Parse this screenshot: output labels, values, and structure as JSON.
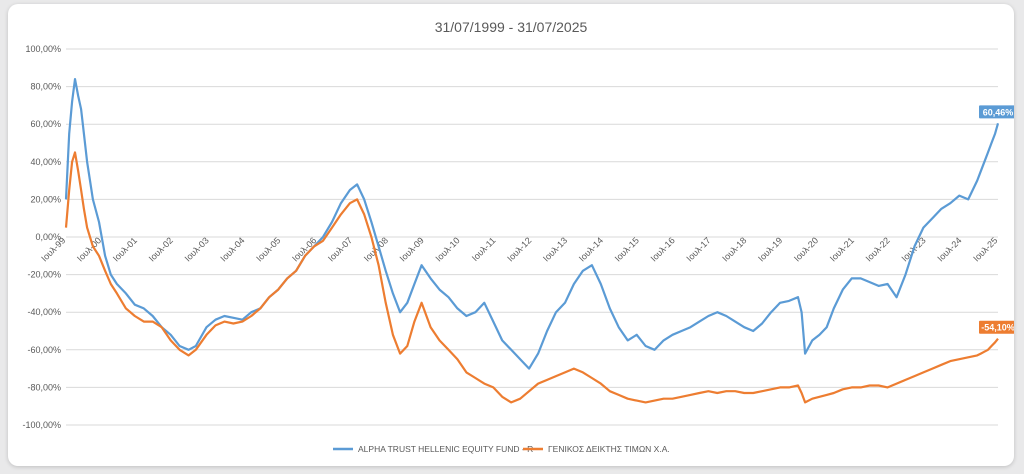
{
  "chart_data": {
    "type": "line",
    "title": "31/07/1999 - 31/07/2025",
    "xlabel": "",
    "ylabel": "",
    "ylim": [
      -100,
      100
    ],
    "y_ticks": [
      "100,00%",
      "80,00%",
      "60,00%",
      "40,00%",
      "20,00%",
      "0,00%",
      "-20,00%",
      "-40,00%",
      "-60,00%",
      "-80,00%",
      "-100,00%"
    ],
    "x_ticks": [
      "Ιουλ-99",
      "Ιουλ-00",
      "Ιουλ-01",
      "Ιουλ-02",
      "Ιουλ-03",
      "Ιουλ-04",
      "Ιουλ-05",
      "Ιουλ-06",
      "Ιουλ-07",
      "Ιουλ-08",
      "Ιουλ-09",
      "Ιουλ-10",
      "Ιουλ-11",
      "Ιουλ-12",
      "Ιουλ-13",
      "Ιουλ-14",
      "Ιουλ-15",
      "Ιουλ-16",
      "Ιουλ-17",
      "Ιουλ-18",
      "Ιουλ-19",
      "Ιουλ-20",
      "Ιουλ-21",
      "Ιουλ-22",
      "Ιουλ-23",
      "Ιουλ-24",
      "Ιουλ-25"
    ],
    "x_range": [
      1999.58,
      2025.58
    ],
    "grid": true,
    "legend_position": "bottom",
    "series": [
      {
        "name": "ALPHA TRUST HELLENIC EQUITY FUND - R",
        "color": "#5b9bd5",
        "end_label": "60,46%",
        "x": [
          1999.58,
          1999.67,
          1999.75,
          1999.83,
          1999.92,
          2000.0,
          2000.08,
          2000.17,
          2000.25,
          2000.33,
          2000.5,
          2000.67,
          2000.83,
          2001.0,
          2001.25,
          2001.5,
          2001.75,
          2002.0,
          2002.25,
          2002.5,
          2002.75,
          2003.0,
          2003.2,
          2003.5,
          2003.75,
          2004.0,
          2004.25,
          2004.5,
          2004.75,
          2005.0,
          2005.25,
          2005.5,
          2005.75,
          2006.0,
          2006.25,
          2006.5,
          2006.75,
          2007.0,
          2007.25,
          2007.5,
          2007.7,
          2007.9,
          2008.1,
          2008.3,
          2008.5,
          2008.7,
          2008.9,
          2009.1,
          2009.3,
          2009.5,
          2009.75,
          2010.0,
          2010.25,
          2010.5,
          2010.75,
          2011.0,
          2011.25,
          2011.5,
          2011.75,
          2012.0,
          2012.25,
          2012.5,
          2012.75,
          2013.0,
          2013.25,
          2013.5,
          2013.75,
          2014.0,
          2014.25,
          2014.5,
          2014.75,
          2015.0,
          2015.25,
          2015.5,
          2015.75,
          2016.0,
          2016.25,
          2016.5,
          2016.75,
          2017.0,
          2017.25,
          2017.5,
          2017.75,
          2018.0,
          2018.25,
          2018.5,
          2018.75,
          2019.0,
          2019.25,
          2019.5,
          2019.75,
          2020.0,
          2020.1,
          2020.2,
          2020.4,
          2020.6,
          2020.8,
          2021.0,
          2021.25,
          2021.5,
          2021.75,
          2022.0,
          2022.25,
          2022.5,
          2022.75,
          2023.0,
          2023.25,
          2023.5,
          2023.75,
          2024.0,
          2024.25,
          2024.5,
          2024.75,
          2025.0,
          2025.1,
          2025.2,
          2025.3,
          2025.4,
          2025.5,
          2025.58
        ],
        "values": [
          20,
          55,
          72,
          84,
          75,
          68,
          55,
          40,
          30,
          20,
          8,
          -10,
          -20,
          -25,
          -30,
          -36,
          -38,
          -42,
          -48,
          -52,
          -58,
          -60,
          -58,
          -48,
          -44,
          -42,
          -43,
          -44,
          -40,
          -38,
          -32,
          -28,
          -22,
          -18,
          -10,
          -5,
          0,
          8,
          18,
          25,
          28,
          20,
          8,
          -5,
          -18,
          -30,
          -40,
          -35,
          -25,
          -15,
          -22,
          -28,
          -32,
          -38,
          -42,
          -40,
          -35,
          -45,
          -55,
          -60,
          -65,
          -70,
          -62,
          -50,
          -40,
          -35,
          -25,
          -18,
          -15,
          -25,
          -38,
          -48,
          -55,
          -52,
          -58,
          -60,
          -55,
          -52,
          -50,
          -48,
          -45,
          -42,
          -40,
          -42,
          -45,
          -48,
          -50,
          -46,
          -40,
          -35,
          -34,
          -32,
          -40,
          -62,
          -55,
          -52,
          -48,
          -38,
          -28,
          -22,
          -22,
          -24,
          -26,
          -25,
          -32,
          -20,
          -5,
          5,
          10,
          15,
          18,
          22,
          20,
          30,
          35,
          40,
          45,
          50,
          55,
          60.46
        ]
      },
      {
        "name": "ΓΕΝΙΚΟΣ ΔΕΙΚΤΗΣ ΤΙΜΩΝ Χ.Α.",
        "color": "#ed7d31",
        "end_label": "-54,10%",
        "x": [
          1999.58,
          1999.67,
          1999.75,
          1999.83,
          1999.92,
          2000.0,
          2000.08,
          2000.17,
          2000.25,
          2000.33,
          2000.5,
          2000.67,
          2000.83,
          2001.0,
          2001.25,
          2001.5,
          2001.75,
          2002.0,
          2002.25,
          2002.5,
          2002.75,
          2003.0,
          2003.2,
          2003.5,
          2003.75,
          2004.0,
          2004.25,
          2004.5,
          2004.75,
          2005.0,
          2005.25,
          2005.5,
          2005.75,
          2006.0,
          2006.25,
          2006.5,
          2006.75,
          2007.0,
          2007.25,
          2007.5,
          2007.7,
          2007.9,
          2008.1,
          2008.3,
          2008.5,
          2008.7,
          2008.9,
          2009.1,
          2009.3,
          2009.5,
          2009.75,
          2010.0,
          2010.25,
          2010.5,
          2010.75,
          2011.0,
          2011.25,
          2011.5,
          2011.75,
          2012.0,
          2012.25,
          2012.5,
          2012.75,
          2013.0,
          2013.25,
          2013.5,
          2013.75,
          2014.0,
          2014.25,
          2014.5,
          2014.75,
          2015.0,
          2015.25,
          2015.5,
          2015.75,
          2016.0,
          2016.25,
          2016.5,
          2016.75,
          2017.0,
          2017.25,
          2017.5,
          2017.75,
          2018.0,
          2018.25,
          2018.5,
          2018.75,
          2019.0,
          2019.25,
          2019.5,
          2019.75,
          2020.0,
          2020.1,
          2020.2,
          2020.4,
          2020.6,
          2020.8,
          2021.0,
          2021.25,
          2021.5,
          2021.75,
          2022.0,
          2022.25,
          2022.5,
          2022.75,
          2023.0,
          2023.25,
          2023.5,
          2023.75,
          2024.0,
          2024.25,
          2024.5,
          2024.75,
          2025.0,
          2025.1,
          2025.2,
          2025.3,
          2025.4,
          2025.5,
          2025.58
        ],
        "values": [
          5,
          25,
          40,
          45,
          35,
          25,
          15,
          5,
          0,
          -5,
          -10,
          -18,
          -25,
          -30,
          -38,
          -42,
          -45,
          -45,
          -48,
          -55,
          -60,
          -63,
          -60,
          -52,
          -47,
          -45,
          -46,
          -45,
          -42,
          -38,
          -32,
          -28,
          -22,
          -18,
          -10,
          -5,
          -2,
          5,
          12,
          18,
          20,
          12,
          0,
          -15,
          -35,
          -52,
          -62,
          -58,
          -45,
          -35,
          -48,
          -55,
          -60,
          -65,
          -72,
          -75,
          -78,
          -80,
          -85,
          -88,
          -86,
          -82,
          -78,
          -76,
          -74,
          -72,
          -70,
          -72,
          -75,
          -78,
          -82,
          -84,
          -86,
          -87,
          -88,
          -87,
          -86,
          -86,
          -85,
          -84,
          -83,
          -82,
          -83,
          -82,
          -82,
          -83,
          -83,
          -82,
          -81,
          -80,
          -80,
          -79,
          -83,
          -88,
          -86,
          -85,
          -84,
          -83,
          -81,
          -80,
          -80,
          -79,
          -79,
          -80,
          -78,
          -76,
          -74,
          -72,
          -70,
          -68,
          -66,
          -65,
          -64,
          -63,
          -62,
          -61,
          -60,
          -58,
          -56,
          -54.1
        ]
      }
    ]
  }
}
